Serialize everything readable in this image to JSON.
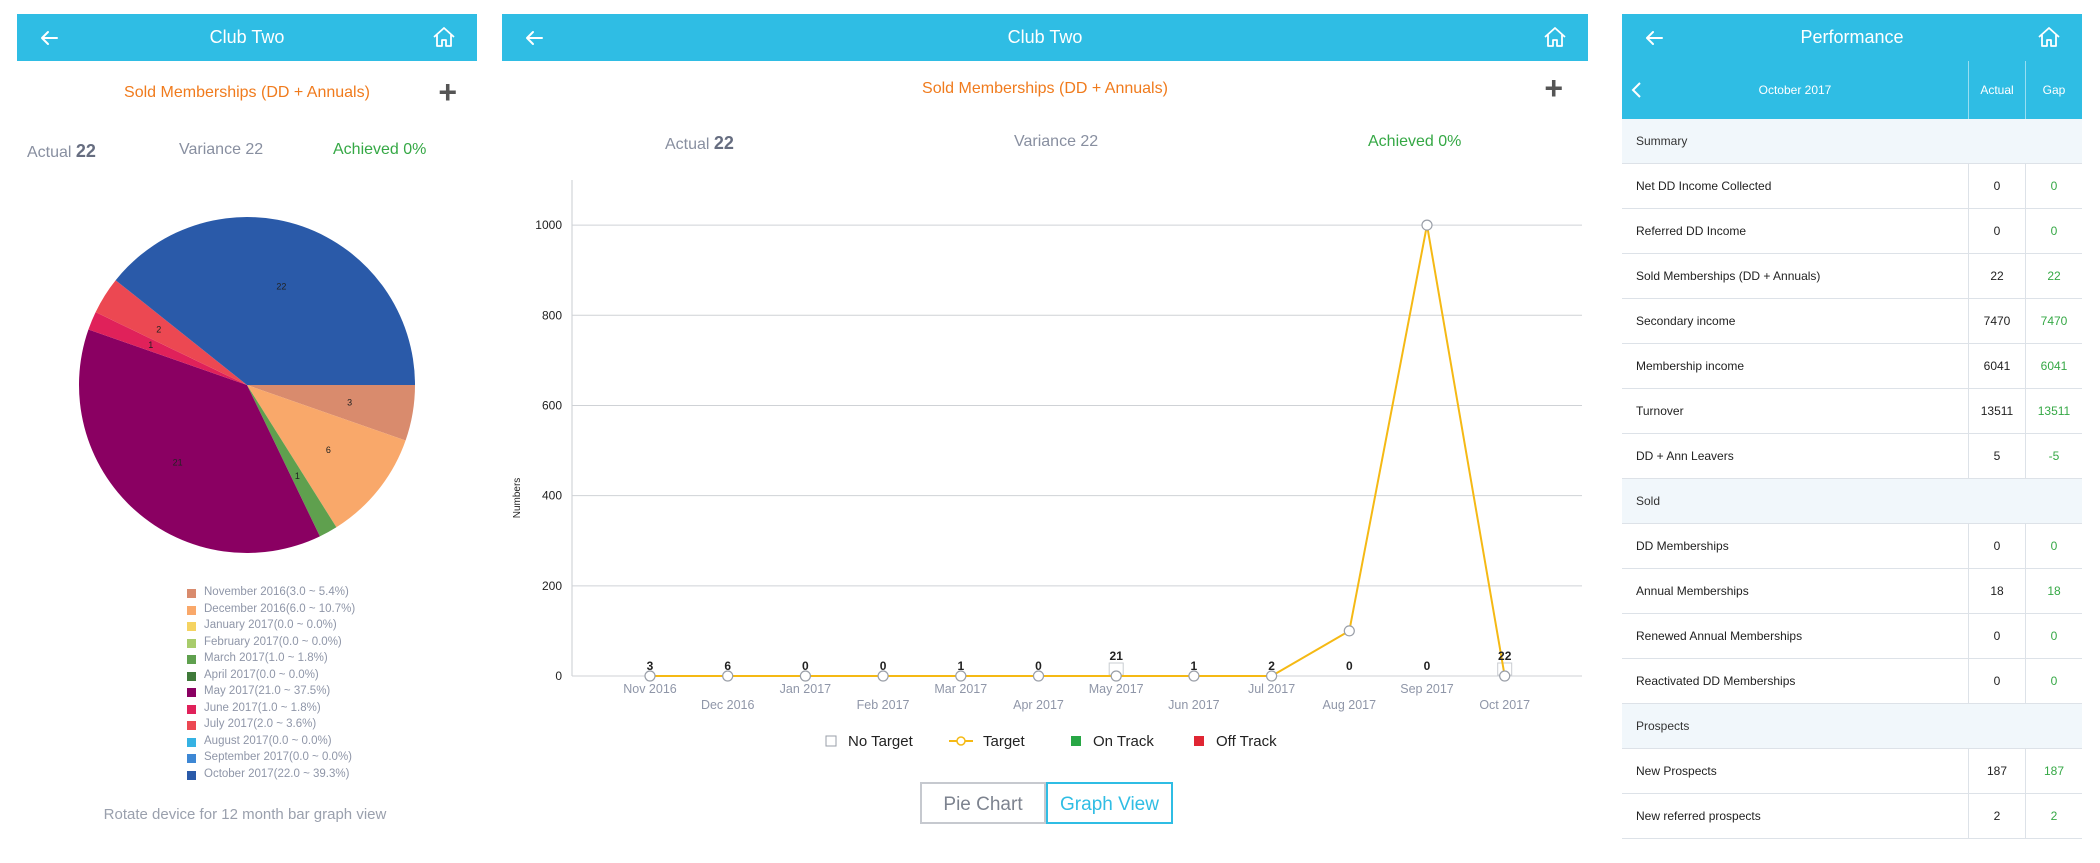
{
  "left_panel": {
    "header_title": "Club Two",
    "subtitle": "Sold Memberships (DD + Annuals)",
    "plus_label": "+",
    "actual_label": "Actual",
    "actual_value": "22",
    "variance_text": "Variance 22",
    "achieved_text": "Achieved 0%",
    "rotate_note": "Rotate device for 12 month bar graph view"
  },
  "chart_data": [
    {
      "type": "pie",
      "slices": [
        {
          "label": "November 2016(3.0 ~ 5.4%)",
          "value": 3,
          "pct": 5.4,
          "color": "#d98b6d",
          "slice_label": "3"
        },
        {
          "label": "December 2016(6.0 ~ 10.7%)",
          "value": 6,
          "pct": 10.7,
          "color": "#f9a86a",
          "slice_label": "6"
        },
        {
          "label": "January 2017(0.0 ~ 0.0%)",
          "value": 0,
          "pct": 0.0,
          "color": "#f5d361",
          "slice_label": ""
        },
        {
          "label": "February 2017(0.0 ~ 0.0%)",
          "value": 0,
          "pct": 0.0,
          "color": "#a8cc6b",
          "slice_label": ""
        },
        {
          "label": "March 2017(1.0 ~ 1.8%)",
          "value": 1,
          "pct": 1.8,
          "color": "#5fa04e",
          "slice_label": "1"
        },
        {
          "label": "April 2017(0.0 ~ 0.0%)",
          "value": 0,
          "pct": 0.0,
          "color": "#3f7a3a",
          "slice_label": ""
        },
        {
          "label": "May 2017(21.0 ~ 37.5%)",
          "value": 21,
          "pct": 37.5,
          "color": "#8a0062",
          "slice_label": "21"
        },
        {
          "label": "June 2017(1.0 ~ 1.8%)",
          "value": 1,
          "pct": 1.8,
          "color": "#e0215a",
          "slice_label": "1"
        },
        {
          "label": "July 2017(2.0 ~ 3.6%)",
          "value": 2,
          "pct": 3.6,
          "color": "#ec4852",
          "slice_label": "2"
        },
        {
          "label": "August 2017(0.0 ~ 0.0%)",
          "value": 0,
          "pct": 0.0,
          "color": "#35b2e3",
          "slice_label": ""
        },
        {
          "label": "September 2017(0.0 ~ 0.0%)",
          "value": 0,
          "pct": 0.0,
          "color": "#3d87d4",
          "slice_label": ""
        },
        {
          "label": "October 2017(22.0 ~ 39.3%)",
          "value": 22,
          "pct": 39.3,
          "color": "#2a5aa9",
          "slice_label": "22"
        }
      ]
    },
    {
      "type": "line",
      "ylabel": "Numbers",
      "ylim": [
        0,
        1100
      ],
      "yticks": [
        0,
        200,
        400,
        600,
        800,
        1000
      ],
      "categories": [
        "Nov 2016",
        "Dec 2016",
        "Jan 2017",
        "Feb 2017",
        "Mar 2017",
        "Apr 2017",
        "May 2017",
        "Jun 2017",
        "Jul 2017",
        "Aug 2017",
        "Sep 2017",
        "Oct 2017"
      ],
      "series": [
        {
          "name": "Target",
          "color": "#f5b914",
          "values": [
            0,
            0,
            0,
            0,
            0,
            0,
            0,
            0,
            0,
            100,
            1000,
            0
          ]
        },
        {
          "name": "No Target",
          "values": [
            3,
            6,
            0,
            0,
            1,
            0,
            21,
            1,
            2,
            0,
            0,
            22
          ]
        }
      ],
      "data_labels": [
        "3",
        "6",
        "0",
        "0",
        "1",
        "0",
        "21",
        "1",
        "2",
        "0",
        "0",
        "22"
      ],
      "legend": [
        {
          "name": "No Target",
          "color": "#ffffff",
          "marker": "square-outline"
        },
        {
          "name": "Target",
          "color": "#f5b914",
          "marker": "line-circle"
        },
        {
          "name": "On Track",
          "color": "#28a745",
          "marker": "square"
        },
        {
          "name": "Off Track",
          "color": "#e02633",
          "marker": "square"
        }
      ],
      "grid": true,
      "legend_position": "bottom"
    }
  ],
  "middle_panel": {
    "header_title": "Club Two",
    "subtitle": "Sold Memberships (DD + Annuals)",
    "plus_label": "+",
    "actual_label": "Actual",
    "actual_value": "22",
    "variance_text": "Variance 22",
    "achieved_text": "Achieved 0%",
    "buttons": {
      "pie": "Pie Chart",
      "graph": "Graph View"
    }
  },
  "right_panel": {
    "header_title": "Performance",
    "month": "October 2017",
    "col_actual": "Actual",
    "col_gap": "Gap",
    "rows": [
      {
        "type": "section",
        "label": "Summary"
      },
      {
        "type": "row",
        "label": "Net DD Income Collected",
        "actual": "0",
        "gap": "0"
      },
      {
        "type": "row",
        "label": "Referred DD Income",
        "actual": "0",
        "gap": "0"
      },
      {
        "type": "row",
        "label": "Sold Memberships (DD + Annuals)",
        "actual": "22",
        "gap": "22"
      },
      {
        "type": "row",
        "label": "Secondary income",
        "actual": "7470",
        "gap": "7470"
      },
      {
        "type": "row",
        "label": "Membership income",
        "actual": "6041",
        "gap": "6041"
      },
      {
        "type": "row",
        "label": "Turnover",
        "actual": "13511",
        "gap": "13511"
      },
      {
        "type": "row",
        "label": "DD + Ann Leavers",
        "actual": "5",
        "gap": "-5"
      },
      {
        "type": "section",
        "label": "Sold"
      },
      {
        "type": "row",
        "label": "DD Memberships",
        "actual": "0",
        "gap": "0"
      },
      {
        "type": "row",
        "label": "Annual Memberships",
        "actual": "18",
        "gap": "18"
      },
      {
        "type": "row",
        "label": "Renewed Annual Memberships",
        "actual": "0",
        "gap": "0"
      },
      {
        "type": "row",
        "label": "Reactivated DD Memberships",
        "actual": "0",
        "gap": "0"
      },
      {
        "type": "section",
        "label": "Prospects"
      },
      {
        "type": "row",
        "label": "New Prospects",
        "actual": "187",
        "gap": "187"
      },
      {
        "type": "row",
        "label": "New referred prospects",
        "actual": "2",
        "gap": "2"
      }
    ]
  },
  "icons": {
    "back": "arrow-left-icon",
    "home": "home-icon",
    "chevron": "chevron-left-icon"
  },
  "colors": {
    "header_blue": "#2fbde4",
    "orange": "#f07b1d",
    "green": "#35a845"
  }
}
